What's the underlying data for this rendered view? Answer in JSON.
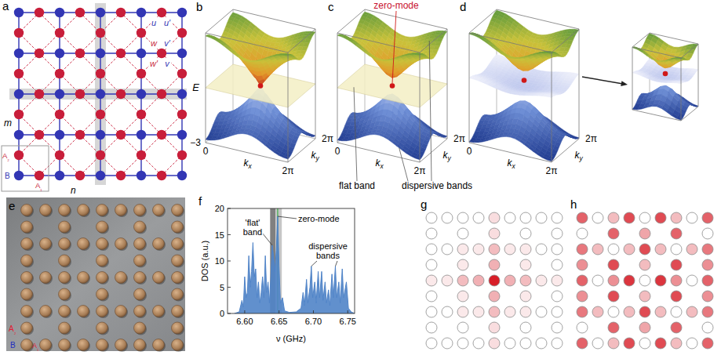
{
  "panel_a": {
    "letter": "a",
    "row_label": "m",
    "column_label": "n",
    "hopping_labels": [
      "u",
      "u′",
      "v′",
      "v",
      "w",
      "w′"
    ],
    "cell_labels": [
      "A₂",
      "B",
      "A₁"
    ]
  },
  "bands": {
    "k_range": [
      0,
      6.2832
    ],
    "energy_range": [
      -3,
      3
    ],
    "energy_label": "E",
    "energy_ticks": [
      {
        "value": -3,
        "label": "−3"
      }
    ],
    "kx_label": "kx",
    "ky_label": "ky",
    "kx_ticks": [
      0,
      {
        "value": 6.2832,
        "label": "2π"
      }
    ],
    "ky_ticks": [
      {
        "value": 6.2832,
        "label": "2π"
      }
    ],
    "panels": [
      {
        "letter": "b"
      },
      {
        "letter": "c",
        "zero_mode_label": "zero-mode",
        "flat_band_label": "flat band",
        "dispersive_bands_label": "dispersive bands"
      },
      {
        "letter": "d"
      }
    ]
  },
  "panel_e": {
    "letter": "e",
    "cell_labels": [
      "A₂",
      "B",
      "A₁"
    ]
  },
  "panel_f": {
    "letter": "f"
  },
  "chart_data": {
    "type": "area",
    "xlabel": "ν (GHz)",
    "ylabel": "DOS (a.u.)",
    "color": "#5084c8",
    "x": [
      6.585,
      6.592,
      6.596,
      6.598,
      6.6,
      6.602,
      6.604,
      6.606,
      6.608,
      6.61,
      6.612,
      6.614,
      6.616,
      6.618,
      6.62,
      6.622,
      6.624,
      6.626,
      6.628,
      6.63,
      6.632,
      6.634,
      6.636,
      6.638,
      6.64,
      6.642,
      6.644,
      6.646,
      6.648,
      6.65,
      6.652,
      6.655,
      6.658,
      6.665,
      6.675,
      6.682,
      6.685,
      6.687,
      6.69,
      6.692,
      6.695,
      6.697,
      6.699,
      6.702,
      6.704,
      6.707,
      6.709,
      6.712,
      6.714,
      6.717,
      6.719,
      6.722,
      6.724,
      6.727,
      6.729,
      6.732,
      6.734,
      6.737,
      6.739,
      6.742,
      6.744,
      6.748,
      6.751,
      6.755,
      6.76
    ],
    "values": [
      0,
      0.3,
      2.5,
      1.2,
      7,
      3,
      4,
      11,
      5,
      8,
      13.5,
      7,
      8.5,
      3,
      6,
      2,
      4,
      7,
      3,
      11,
      4,
      6,
      2,
      7,
      13,
      11,
      8,
      12,
      18.5,
      9,
      2,
      3,
      0.5,
      0.2,
      0.3,
      1,
      4,
      1.5,
      6.5,
      2,
      5,
      9,
      3,
      6,
      2,
      8,
      3,
      8,
      2.5,
      6,
      2,
      4.5,
      1.5,
      7.5,
      3,
      9,
      3,
      6,
      2,
      8.5,
      3,
      6,
      1,
      0.3,
      0
    ],
    "xlim": [
      6.575,
      6.76
    ],
    "ylim": [
      0,
      20
    ],
    "xticks": [
      {
        "value": 6.6,
        "label": "6.60"
      },
      6.65,
      {
        "value": 6.7,
        "label": "6.70"
      },
      6.75
    ],
    "yticks": [
      0,
      5,
      10,
      15,
      20
    ],
    "shaded_ranges": [
      {
        "from": 6.637,
        "to": 6.645
      },
      {
        "from": 6.645,
        "to": 6.654
      }
    ],
    "zero_mode_frequency": 6.648,
    "annotations": [
      {
        "text": "'flat' band",
        "points": [
          {
            "x": 6.64,
            "y": 13
          }
        ]
      },
      {
        "text": "zero-mode",
        "points": [
          {
            "x": 6.648,
            "y": 18.5
          }
        ]
      },
      {
        "text": "dispersive bands",
        "points": [
          {
            "x": 6.697,
            "y": 9
          },
          {
            "x": 6.732,
            "y": 9
          }
        ]
      }
    ]
  },
  "panel_g": {
    "letter": "g",
    "intensity": [
      [
        0,
        0,
        0,
        0,
        0.15,
        0,
        0,
        0,
        0
      ],
      [
        0,
        null,
        0,
        null,
        0.15,
        null,
        0,
        null,
        0
      ],
      [
        0,
        0,
        0.1,
        0.1,
        0.3,
        0.1,
        0.1,
        0,
        0
      ],
      [
        0,
        null,
        0.1,
        null,
        0.35,
        null,
        0.1,
        null,
        0
      ],
      [
        0.1,
        0.1,
        0.3,
        0.35,
        1,
        0.35,
        0.3,
        0.1,
        0.1
      ],
      [
        0,
        null,
        0.1,
        null,
        0.35,
        null,
        0.1,
        null,
        0
      ],
      [
        0,
        0,
        0.1,
        0.1,
        0.3,
        0.1,
        0.1,
        0,
        0
      ],
      [
        0,
        null,
        0,
        null,
        0.15,
        null,
        0,
        null,
        0
      ],
      [
        0,
        0,
        0,
        0,
        0.15,
        0,
        0,
        0,
        0
      ]
    ]
  },
  "panel_h": {
    "letter": "h",
    "intensity": [
      [
        0.7,
        0,
        0.3,
        0.8,
        0,
        0.8,
        0.3,
        0,
        0.7
      ],
      [
        0,
        null,
        0.7,
        null,
        0.4,
        null,
        0.7,
        null,
        0
      ],
      [
        0.6,
        0.3,
        0,
        0.3,
        0.8,
        0.3,
        0,
        0.3,
        0.6
      ],
      [
        0.5,
        null,
        0.8,
        null,
        0.3,
        null,
        0.8,
        null,
        0.5
      ],
      [
        0.7,
        0,
        0.5,
        0.9,
        0,
        0.9,
        0.5,
        0,
        0.7
      ],
      [
        0.5,
        null,
        0.8,
        null,
        0.3,
        null,
        0.8,
        null,
        0.5
      ],
      [
        0.6,
        0.3,
        0,
        0.3,
        0.8,
        0.3,
        0,
        0.3,
        0.6
      ],
      [
        0,
        null,
        0.7,
        null,
        0.4,
        null,
        0.7,
        null,
        0
      ],
      [
        0.7,
        0,
        0.3,
        0.8,
        0,
        0.8,
        0.3,
        0,
        0.7
      ]
    ]
  }
}
